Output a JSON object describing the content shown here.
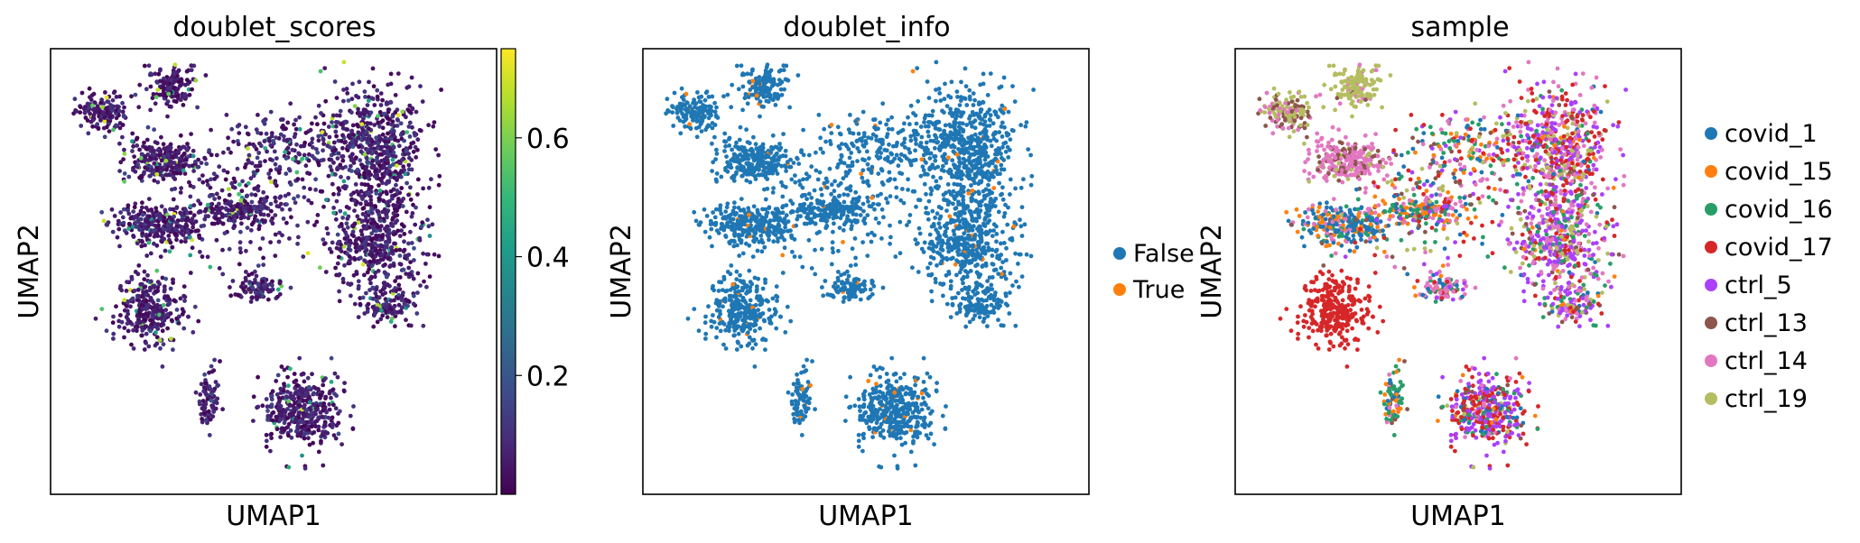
{
  "chart_data": [
    {
      "type": "scatter",
      "title": "doublet_scores",
      "xlabel": "UMAP1",
      "ylabel": "UMAP2",
      "color_by": "continuous",
      "colormap": "viridis",
      "colorbar": {
        "range": [
          0.0,
          0.75
        ],
        "ticks": [
          0.2,
          0.4,
          0.6
        ],
        "tick_labels": [
          "0.2",
          "0.4",
          "0.6"
        ]
      },
      "x_ticks": "none",
      "y_ticks": "none"
    },
    {
      "type": "scatter",
      "title": "doublet_info",
      "xlabel": "UMAP1",
      "ylabel": "UMAP2",
      "color_by": "categorical",
      "legend_position": "right",
      "legend": [
        {
          "name": "False",
          "color": "#1f77b4"
        },
        {
          "name": "True",
          "color": "#ff7f0e"
        }
      ]
    },
    {
      "type": "scatter",
      "title": "sample",
      "xlabel": "UMAP1",
      "ylabel": "UMAP2",
      "color_by": "categorical",
      "legend_position": "right",
      "legend": [
        {
          "name": "covid_1",
          "color": "#1f77b4"
        },
        {
          "name": "covid_15",
          "color": "#ff7f0e"
        },
        {
          "name": "covid_16",
          "color": "#279e68"
        },
        {
          "name": "covid_17",
          "color": "#d62728"
        },
        {
          "name": "ctrl_5",
          "color": "#aa40fc"
        },
        {
          "name": "ctrl_13",
          "color": "#8c564b"
        },
        {
          "name": "ctrl_14",
          "color": "#e377c2"
        },
        {
          "name": "ctrl_19",
          "color": "#b5bd61"
        }
      ]
    }
  ]
}
